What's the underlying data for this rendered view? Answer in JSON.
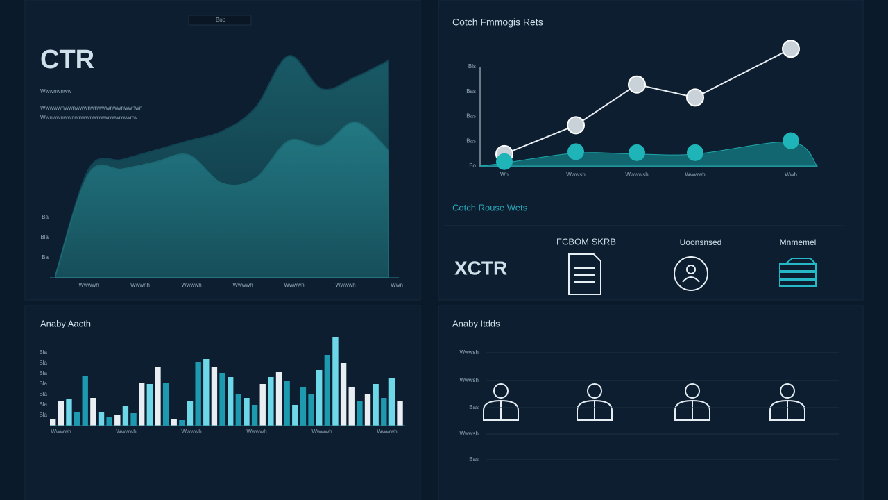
{
  "header_tab": "Bob",
  "ctr": {
    "title": "CTR",
    "subtitle": "Wwwnwnww",
    "notes": [
      "Wwwwwnwwnwwwnwnwwwnwwnwwnwn",
      "Wwnwwnwwnwnwwnwnwwnwwnwwnw"
    ]
  },
  "section_title": "Cotch Rouse Wets",
  "kpi": {
    "title": "XCTR",
    "items": [
      {
        "label": "FCBOM SKRB"
      },
      {
        "label": "Uoonsnsed"
      },
      {
        "label": "Mnmemel"
      }
    ]
  },
  "people": {
    "title": "Anaby Itdds",
    "y_labels": [
      "Wwwsh",
      "Wwwsh",
      "Bas",
      "Wwwsh",
      "Bas"
    ]
  },
  "chart_data": [
    {
      "type": "area",
      "x_labels": [
        "Wwwwh",
        "Wwwnh",
        "Wwwwh",
        "Wwwwh",
        "Wwwwn",
        "Wwwwh",
        "Wwn"
      ],
      "y_labels": [
        "Ba",
        "Bla",
        "Ba"
      ],
      "ylim": [
        0,
        100
      ],
      "series": [
        {
          "color": "#124655",
          "values": [
            1,
            46,
            50,
            54,
            58,
            62,
            72,
            94,
            80,
            85,
            92
          ]
        },
        {
          "color": "#1d6a74",
          "values": [
            1,
            44,
            46,
            49,
            52,
            40,
            42,
            58,
            56,
            66,
            54
          ]
        }
      ]
    },
    {
      "type": "line",
      "title": "Cotch Fmmogis Rets",
      "categories": [
        "Wh",
        "Wwwsh",
        "Wwwwsh",
        "Wwwwh",
        "Wwh"
      ],
      "ylim": [
        0,
        120
      ],
      "yticks": [
        {
          "value": 0,
          "label": "Bo"
        },
        {
          "value": 25,
          "label": "Bas"
        },
        {
          "value": 50,
          "label": "Bas"
        },
        {
          "value": 75,
          "label": "Bas"
        },
        {
          "value": 100,
          "label": "Bls"
        }
      ],
      "series": [
        {
          "color": "#e8eef2",
          "values": [
            12,
            41,
            82,
            69,
            118
          ]
        },
        {
          "color": "#1fb5b8",
          "values": [
            3,
            13,
            12,
            12,
            24
          ]
        }
      ]
    },
    {
      "type": "bar",
      "title": "Anaby Aacth",
      "ylim": [
        0,
        130
      ],
      "y_labels": [
        "Bla",
        "Bla",
        "Bla",
        "Bla",
        "Bla",
        "Bla",
        "Bla"
      ],
      "x_labels": [
        "Wwwwh",
        "Wwwwh",
        "Wwwwh",
        "Wwwwh",
        "Wwwwh",
        "Wwwwh"
      ],
      "values": [
        10,
        35,
        38,
        20,
        72,
        40,
        20,
        12,
        15,
        28,
        18,
        62,
        60,
        85,
        62,
        10,
        8,
        35,
        92,
        96,
        84,
        76,
        70,
        45,
        40,
        30,
        60,
        70,
        78,
        65,
        30,
        55,
        45,
        80,
        102,
        128,
        90,
        55,
        35,
        45,
        60,
        40,
        68,
        35
      ],
      "colors": [
        "#e8eef2",
        "#e8eef2",
        "#6fd8e8",
        "#1e9ab0",
        "#1e9ab0",
        "#e8eef2",
        "#6fd8e8",
        "#1e9ab0",
        "#e8eef2",
        "#6fd8e8",
        "#1e9ab0",
        "#e8eef2",
        "#6fd8e8",
        "#e8eef2",
        "#1e9ab0",
        "#e8eef2",
        "#1e9ab0",
        "#6fd8e8",
        "#1e9ab0",
        "#6fd8e8",
        "#e8eef2",
        "#1e9ab0",
        "#6fd8e8",
        "#1e9ab0",
        "#6fd8e8",
        "#1e9ab0",
        "#e8eef2",
        "#6fd8e8",
        "#e8eef2",
        "#1e9ab0",
        "#6fd8e8",
        "#1e9ab0",
        "#1e9ab0",
        "#6fd8e8",
        "#1e9ab0",
        "#6fd8e8",
        "#e8eef2",
        "#e8eef2",
        "#1e9ab0",
        "#e8eef2",
        "#6fd8e8",
        "#1e9ab0",
        "#6fd8e8",
        "#e8eef2"
      ]
    }
  ]
}
